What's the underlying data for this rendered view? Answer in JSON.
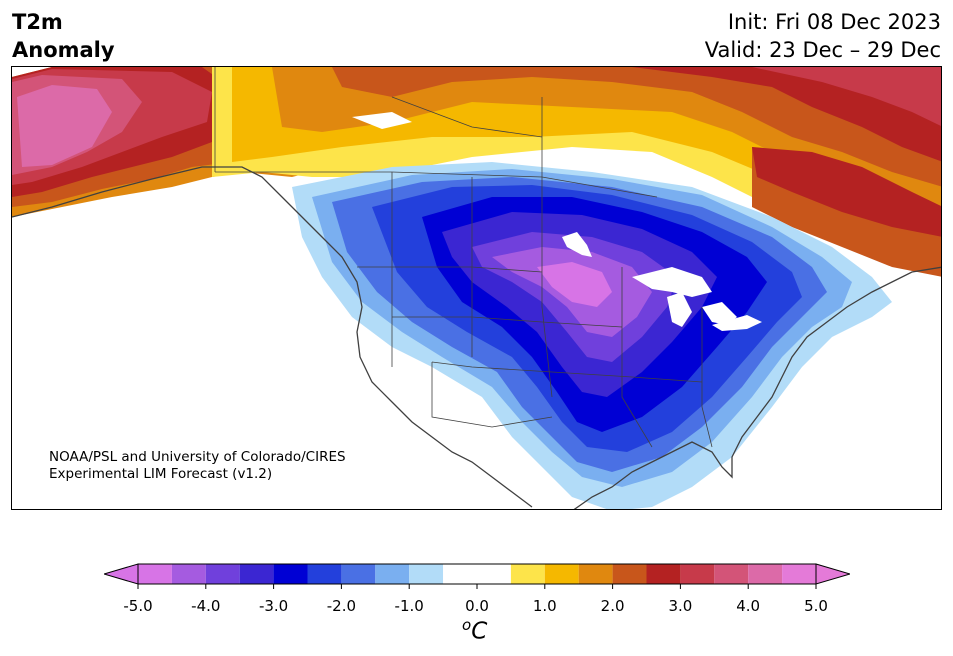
{
  "title": {
    "line1": "T2m",
    "line2": "Anomaly"
  },
  "forecast": {
    "init": "Init: Fri 08 Dec 2023",
    "valid": "Valid: 23 Dec – 29 Dec"
  },
  "credit": {
    "line1": "NOAA/PSL and University of Colorado/CIRES",
    "line2": "Experimental LIM Forecast (v1.2)"
  },
  "colorbar": {
    "unit_super": "o",
    "unit_base": "C",
    "ticks": [
      "-5.0",
      "-4.0",
      "-3.0",
      "-2.0",
      "-1.0",
      "0.0",
      "1.0",
      "2.0",
      "3.0",
      "4.0",
      "5.0"
    ],
    "tick_values": [
      -5,
      -4,
      -3,
      -2,
      -1,
      0,
      1,
      2,
      3,
      4,
      5
    ],
    "levels": [
      -5,
      -4.5,
      -4,
      -3.5,
      -3,
      -2.5,
      -2,
      -1.5,
      -1,
      -0.5,
      0.5,
      1,
      1.5,
      2,
      2.5,
      3,
      3.5,
      4,
      4.5,
      5
    ],
    "colors": [
      "#d774e6",
      "#a55be0",
      "#7040dc",
      "#3b26d2",
      "#0000d4",
      "#2340dc",
      "#4a70e4",
      "#7aaff0",
      "#b2dcf8",
      "#ffffff",
      "#fde44a",
      "#f5b800",
      "#e0880f",
      "#c8561b",
      "#b42222",
      "#c73a4a",
      "#d35478",
      "#dc6aa8",
      "#e47ad8"
    ],
    "under_color": "#d774e6",
    "over_color": "#e47ad8"
  },
  "map": {
    "projection": "North America",
    "features": [
      "coastlines",
      "country-borders",
      "state-borders",
      "lakes"
    ],
    "palette": {
      "cold_core": "#d774e6",
      "cold_purple": "#a55be0",
      "cold_deep": "#0000d4",
      "cold_mid": "#4a70e4",
      "cold_light": "#b2dcf8",
      "warm_yellow": "#fde44a",
      "warm_orange": "#e0880f",
      "warm_red": "#b42222",
      "warm_magenta": "#dc6aa8",
      "coast": "#404040"
    }
  }
}
